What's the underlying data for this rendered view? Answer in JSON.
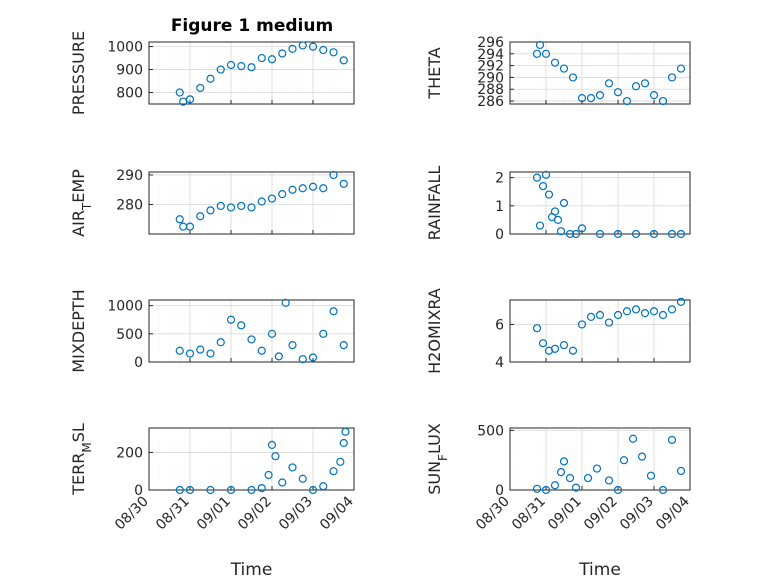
{
  "figure_title": "Figure 1 medium",
  "chart_data": [
    {
      "type": "scatter",
      "title": "Figure 1 medium",
      "ylabel": "PRESSURE",
      "ylabel_sub": "",
      "xlabel": "",
      "xlim": [
        "2023-08-30",
        "2023-09-04"
      ],
      "ylim": [
        750,
        1020
      ],
      "yticks": [
        800,
        900,
        1000
      ],
      "xticks_shown": false,
      "x": [
        "2023-08-30T18:00",
        "2023-08-30T20:00",
        "2023-08-31T00:00",
        "2023-08-31T06:00",
        "2023-08-31T12:00",
        "2023-08-31T18:00",
        "2023-09-01T00:00",
        "2023-09-01T06:00",
        "2023-09-01T12:00",
        "2023-09-01T18:00",
        "2023-09-02T00:00",
        "2023-09-02T06:00",
        "2023-09-02T12:00",
        "2023-09-02T18:00",
        "2023-09-03T00:00",
        "2023-09-03T06:00",
        "2023-09-03T12:00",
        "2023-09-03T18:00"
      ],
      "y": [
        800,
        760,
        770,
        820,
        860,
        900,
        920,
        915,
        910,
        950,
        945,
        970,
        990,
        1005,
        1000,
        985,
        975,
        940
      ]
    },
    {
      "type": "scatter",
      "title": "",
      "ylabel": "THETA",
      "ylabel_sub": "",
      "xlabel": "",
      "xlim": [
        "2023-08-30",
        "2023-09-04"
      ],
      "ylim": [
        285.5,
        296
      ],
      "yticks": [
        286,
        288,
        290,
        292,
        294,
        296
      ],
      "xticks_shown": false,
      "x": [
        "2023-08-30T18:00",
        "2023-08-30T20:00",
        "2023-08-31T00:00",
        "2023-08-31T06:00",
        "2023-08-31T12:00",
        "2023-08-31T18:00",
        "2023-09-01T00:00",
        "2023-09-01T06:00",
        "2023-09-01T12:00",
        "2023-09-01T18:00",
        "2023-09-02T00:00",
        "2023-09-02T06:00",
        "2023-09-02T12:00",
        "2023-09-02T18:00",
        "2023-09-03T00:00",
        "2023-09-03T06:00",
        "2023-09-03T12:00",
        "2023-09-03T18:00"
      ],
      "y": [
        294,
        295.5,
        294,
        292.5,
        291.5,
        290,
        286.5,
        286.5,
        287,
        289,
        287.5,
        286,
        288.5,
        289,
        287,
        286,
        290,
        291.5
      ]
    },
    {
      "type": "scatter",
      "title": "",
      "ylabel": "AIR",
      "ylabel_sub": "T",
      "ylabel_tail": "EMP",
      "xlabel": "",
      "xlim": [
        "2023-08-30",
        "2023-09-04"
      ],
      "ylim": [
        270,
        291
      ],
      "yticks": [
        280,
        290
      ],
      "xticks_shown": false,
      "x": [
        "2023-08-30T18:00",
        "2023-08-30T20:00",
        "2023-08-31T00:00",
        "2023-08-31T06:00",
        "2023-08-31T12:00",
        "2023-08-31T18:00",
        "2023-09-01T00:00",
        "2023-09-01T06:00",
        "2023-09-01T12:00",
        "2023-09-01T18:00",
        "2023-09-02T00:00",
        "2023-09-02T06:00",
        "2023-09-02T12:00",
        "2023-09-02T18:00",
        "2023-09-03T00:00",
        "2023-09-03T06:00",
        "2023-09-03T12:00",
        "2023-09-03T18:00"
      ],
      "y": [
        275,
        272.5,
        272.5,
        276,
        278,
        279.5,
        279,
        279.5,
        279,
        281,
        282,
        283.5,
        285,
        285.5,
        286,
        285.5,
        290,
        287
      ]
    },
    {
      "type": "scatter",
      "title": "",
      "ylabel": "RAINFALL",
      "ylabel_sub": "",
      "xlabel": "",
      "xlim": [
        "2023-08-30",
        "2023-09-04"
      ],
      "ylim": [
        0,
        2.2
      ],
      "yticks": [
        0,
        1,
        2
      ],
      "xticks_shown": false,
      "x": [
        "2023-08-30T18:00",
        "2023-08-30T20:00",
        "2023-08-30T22:00",
        "2023-08-31T00:00",
        "2023-08-31T02:00",
        "2023-08-31T04:00",
        "2023-08-31T06:00",
        "2023-08-31T08:00",
        "2023-08-31T10:00",
        "2023-08-31T12:00",
        "2023-08-31T16:00",
        "2023-08-31T20:00",
        "2023-09-01T00:00",
        "2023-09-01T12:00",
        "2023-09-02T00:00",
        "2023-09-02T12:00",
        "2023-09-03T00:00",
        "2023-09-03T12:00",
        "2023-09-03T18:00"
      ],
      "y": [
        2,
        0.3,
        1.7,
        2.1,
        1.4,
        0.6,
        0.8,
        0.5,
        0.1,
        1.1,
        0,
        0,
        0.2,
        0,
        0,
        0,
        0,
        0,
        0
      ]
    },
    {
      "type": "scatter",
      "title": "",
      "ylabel": "MIXDEPTH",
      "ylabel_sub": "",
      "xlabel": "",
      "xlim": [
        "2023-08-30",
        "2023-09-04"
      ],
      "ylim": [
        0,
        1100
      ],
      "yticks": [
        0,
        500,
        1000
      ],
      "xticks_shown": false,
      "x": [
        "2023-08-30T18:00",
        "2023-08-31T00:00",
        "2023-08-31T06:00",
        "2023-08-31T12:00",
        "2023-08-31T18:00",
        "2023-09-01T00:00",
        "2023-09-01T06:00",
        "2023-09-01T12:00",
        "2023-09-01T18:00",
        "2023-09-02T00:00",
        "2023-09-02T04:00",
        "2023-09-02T08:00",
        "2023-09-02T12:00",
        "2023-09-02T18:00",
        "2023-09-03T00:00",
        "2023-09-03T06:00",
        "2023-09-03T12:00",
        "2023-09-03T18:00"
      ],
      "y": [
        200,
        150,
        220,
        150,
        350,
        750,
        650,
        400,
        200,
        500,
        100,
        1050,
        300,
        50,
        80,
        500,
        900,
        300
      ]
    },
    {
      "type": "scatter",
      "title": "",
      "ylabel": "H2OMIXRA",
      "ylabel_sub": "",
      "xlabel": "",
      "xlim": [
        "2023-08-30",
        "2023-09-04"
      ],
      "ylim": [
        4,
        7.3
      ],
      "yticks": [
        4,
        6
      ],
      "xticks_shown": false,
      "x": [
        "2023-08-30T18:00",
        "2023-08-30T22:00",
        "2023-08-31T02:00",
        "2023-08-31T06:00",
        "2023-08-31T12:00",
        "2023-08-31T18:00",
        "2023-09-01T00:00",
        "2023-09-01T06:00",
        "2023-09-01T12:00",
        "2023-09-01T18:00",
        "2023-09-02T00:00",
        "2023-09-02T06:00",
        "2023-09-02T12:00",
        "2023-09-02T18:00",
        "2023-09-03T00:00",
        "2023-09-03T06:00",
        "2023-09-03T12:00",
        "2023-09-03T18:00"
      ],
      "y": [
        5.8,
        5.0,
        4.6,
        4.7,
        4.9,
        4.6,
        6.0,
        6.4,
        6.5,
        6.1,
        6.5,
        6.7,
        6.8,
        6.6,
        6.7,
        6.5,
        6.8,
        7.2
      ]
    },
    {
      "type": "scatter",
      "title": "",
      "ylabel": "TERR",
      "ylabel_sub": "M",
      "ylabel_tail": "SL",
      "xlabel": "Time",
      "xlim": [
        "2023-08-30",
        "2023-09-04"
      ],
      "ylim": [
        0,
        330
      ],
      "yticks": [
        0,
        200
      ],
      "xticks_shown": true,
      "xticklabels": [
        "08/30",
        "08/31",
        "09/01",
        "09/02",
        "09/03",
        "09/04"
      ],
      "x": [
        "2023-08-30T18:00",
        "2023-08-31T00:00",
        "2023-08-31T12:00",
        "2023-09-01T00:00",
        "2023-09-01T12:00",
        "2023-09-01T18:00",
        "2023-09-01T22:00",
        "2023-09-02T00:00",
        "2023-09-02T02:00",
        "2023-09-02T06:00",
        "2023-09-02T12:00",
        "2023-09-02T18:00",
        "2023-09-03T00:00",
        "2023-09-03T06:00",
        "2023-09-03T12:00",
        "2023-09-03T16:00",
        "2023-09-03T18:00",
        "2023-09-03T19:00"
      ],
      "y": [
        0,
        0,
        0,
        0,
        0,
        10,
        80,
        240,
        180,
        40,
        120,
        60,
        0,
        20,
        100,
        150,
        250,
        310
      ]
    },
    {
      "type": "scatter",
      "title": "",
      "ylabel": "SUN",
      "ylabel_sub": "F",
      "ylabel_tail": "LUX",
      "xlabel": "Time",
      "xlim": [
        "2023-08-30",
        "2023-09-04"
      ],
      "ylim": [
        0,
        520
      ],
      "yticks": [
        0,
        500
      ],
      "xticks_shown": true,
      "xticklabels": [
        "08/30",
        "08/31",
        "09/01",
        "09/02",
        "09/03",
        "09/04"
      ],
      "x": [
        "2023-08-30T18:00",
        "2023-08-31T00:00",
        "2023-08-31T06:00",
        "2023-08-31T10:00",
        "2023-08-31T12:00",
        "2023-08-31T16:00",
        "2023-08-31T20:00",
        "2023-09-01T04:00",
        "2023-09-01T10:00",
        "2023-09-01T18:00",
        "2023-09-02T00:00",
        "2023-09-02T04:00",
        "2023-09-02T10:00",
        "2023-09-02T16:00",
        "2023-09-02T22:00",
        "2023-09-03T06:00",
        "2023-09-03T12:00",
        "2023-09-03T18:00"
      ],
      "y": [
        10,
        0,
        40,
        150,
        240,
        100,
        20,
        100,
        180,
        80,
        0,
        250,
        430,
        280,
        120,
        0,
        420,
        160
      ]
    }
  ],
  "colors": {
    "marker": "#0072bd",
    "axis": "#262626",
    "grid": "#d9d9d9"
  }
}
